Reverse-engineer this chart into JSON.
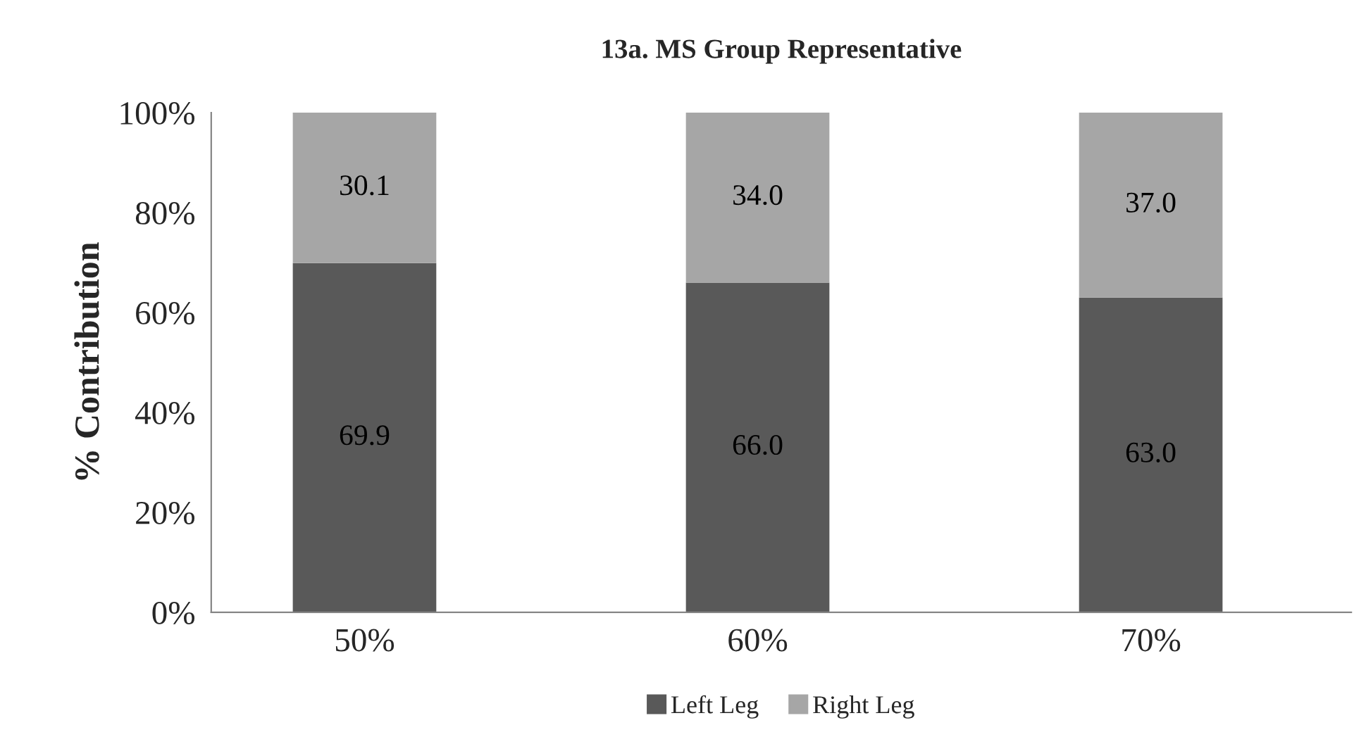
{
  "chart_data": {
    "type": "bar",
    "title": "13a. MS Group Representative",
    "ylabel": "% Contribution",
    "categories": [
      "50%",
      "60%",
      "70%"
    ],
    "stacked": true,
    "series": [
      {
        "name": "Left Leg",
        "color": "#595959",
        "values": [
          69.9,
          66.0,
          63.0
        ],
        "value_labels": [
          "69.9",
          "66.0",
          "63.0"
        ]
      },
      {
        "name": "Right Leg",
        "color": "#a6a6a6",
        "values": [
          30.1,
          34.0,
          37.0
        ],
        "value_labels": [
          "30.1",
          "34.0",
          "37.0"
        ]
      }
    ],
    "ylim": [
      0,
      100
    ],
    "yticks": [
      {
        "value": 0,
        "label": "0%"
      },
      {
        "value": 20,
        "label": "20%"
      },
      {
        "value": 40,
        "label": "40%"
      },
      {
        "value": 60,
        "label": "60%"
      },
      {
        "value": 80,
        "label": "80%"
      },
      {
        "value": 100,
        "label": "100%"
      }
    ],
    "grid": false,
    "legend": "bottom"
  }
}
